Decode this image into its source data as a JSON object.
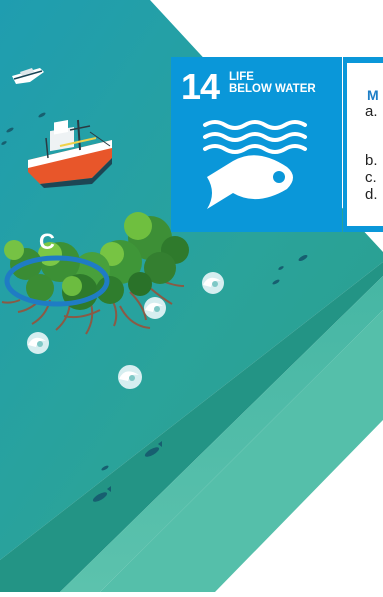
{
  "sdg_tile": {
    "number": "14",
    "title_line1": "LIFE",
    "title_line2": "BELOW WATER",
    "color": "#0a97d9",
    "icon": "fish-and-waves-icon"
  },
  "side_list": {
    "heading": "M",
    "items": [
      "a.",
      "b.",
      "c.",
      "d."
    ]
  },
  "map": {
    "marker_label": "C",
    "marker_color": "#1f7cc4",
    "sea_color": "#2ea79b",
    "seabed_color": "#4cb8a8",
    "shore_color": "#3fae9e"
  }
}
